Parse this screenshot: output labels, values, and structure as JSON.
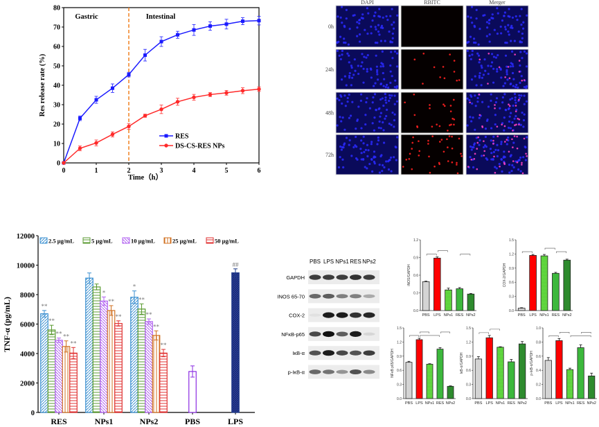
{
  "chart_data": [
    {
      "type": "line",
      "xlabel": "Time（h）",
      "ylabel": "Res release rate (%)",
      "xlim": [
        0,
        6
      ],
      "ylim": [
        0,
        80
      ],
      "xticks": [
        0,
        1,
        2,
        3,
        4,
        5,
        6
      ],
      "yticks": [
        0,
        10,
        20,
        30,
        40,
        50,
        60,
        70,
        80
      ],
      "grid": false,
      "legend_placement": "bottom-right",
      "annotations": {
        "left_region": "Gastric",
        "right_region": "Intestinal",
        "divider_x": 2,
        "divider_color": "#f08020"
      },
      "x": [
        0,
        0.5,
        1,
        1.5,
        2,
        2.5,
        3,
        3.5,
        4,
        4.5,
        5,
        5.5,
        6
      ],
      "series": [
        {
          "name": "RES",
          "color": "#1a1aff",
          "marker": "square",
          "values": [
            0,
            23,
            32.5,
            38.5,
            45.5,
            55.5,
            62.5,
            66,
            68.5,
            70.5,
            71.5,
            73,
            73.3
          ],
          "errors": [
            0,
            1.2,
            1.8,
            2.2,
            1.2,
            3,
            2.5,
            1.8,
            2.8,
            2.2,
            2.5,
            1.8,
            2.2
          ]
        },
        {
          "name": "DS-CS-RES NPs",
          "color": "#ff2a2a",
          "marker": "circle",
          "values": [
            0,
            7.5,
            10.3,
            14.7,
            18.8,
            24.3,
            27.6,
            31.5,
            33.8,
            35.2,
            36.1,
            37.2,
            38
          ],
          "errors": [
            0,
            1.2,
            1.5,
            1.3,
            1.5,
            0.8,
            2.2,
            1.8,
            1.5,
            1,
            1.2,
            1.5,
            1.2
          ]
        }
      ]
    },
    {
      "type": "image-grid",
      "columns": [
        "DAPI",
        "RBITC",
        "Merger"
      ],
      "rows": [
        "0h",
        "24h",
        "48h",
        "72h"
      ],
      "red_signal_level": [
        0,
        0.35,
        0.6,
        1
      ]
    },
    {
      "type": "bar",
      "ylabel": "TNF-α (pg/mL)",
      "ylim": [
        0,
        12000
      ],
      "yticks": [
        0,
        2000,
        4000,
        6000,
        8000,
        10000,
        12000
      ],
      "legend_placement": "top",
      "categories": [
        "RES",
        "NPs1",
        "NPs2",
        "PBS",
        "LPS"
      ],
      "series": [
        {
          "name": "2.5 μg/mL",
          "color": "#3a8fd0",
          "pattern": "diagonal",
          "values": [
            6700,
            9120,
            7820,
            null,
            null
          ],
          "errors": [
            220,
            350,
            430,
            null,
            null
          ],
          "sig": [
            "**",
            "",
            "*",
            "",
            ""
          ]
        },
        {
          "name": "5 μg/mL",
          "color": "#5a9a30",
          "pattern": "horizontal",
          "values": [
            5600,
            8520,
            7020,
            null,
            null
          ],
          "errors": [
            320,
            200,
            350,
            null,
            null
          ],
          "sig": [
            "**",
            "",
            "**",
            "",
            ""
          ]
        },
        {
          "name": "10 μg/mL",
          "color": "#b060f0",
          "pattern": "back-diagonal",
          "values": [
            4900,
            7560,
            6170,
            null,
            null
          ],
          "errors": [
            150,
            280,
            180,
            null,
            null
          ],
          "sig": [
            "**",
            "*",
            "**",
            "",
            ""
          ]
        },
        {
          "name": "25 μg/mL",
          "color": "#d07020",
          "pattern": "vertical",
          "values": [
            4480,
            6920,
            5230,
            null,
            null
          ],
          "errors": [
            380,
            330,
            310,
            null,
            null
          ],
          "sig": [
            "**",
            "**",
            "**",
            "",
            ""
          ]
        },
        {
          "name": "50 μg/mL",
          "color": "#e03030",
          "pattern": "horizontal",
          "values": [
            4030,
            6040,
            4030,
            null,
            null
          ],
          "errors": [
            380,
            180,
            250,
            null,
            null
          ],
          "sig": [
            "**",
            "**",
            "**",
            "",
            ""
          ]
        }
      ],
      "controls": [
        {
          "category": "PBS",
          "value": 2780,
          "error": 380,
          "color": "#8a2be2",
          "fill": "#ffffff",
          "sig": ""
        },
        {
          "category": "LPS",
          "value": 9480,
          "error": 270,
          "color": "#1e3a8a",
          "fill": "#2a3f9a",
          "sig": "##"
        }
      ]
    },
    {
      "type": "western-blot",
      "lanes": [
        "PBS",
        "LPS",
        "NPs1",
        "RES",
        "NPs2"
      ],
      "rows": [
        {
          "label": "GAPDH",
          "intensity": [
            0.8,
            0.8,
            0.8,
            0.85,
            0.8
          ]
        },
        {
          "label": "INOS 65-70",
          "intensity": [
            0.6,
            0.65,
            0.5,
            0.5,
            0.3
          ]
        },
        {
          "label": "COX-2",
          "intensity": [
            0.05,
            0.95,
            0.95,
            0.85,
            0.9
          ]
        },
        {
          "label": "NFκB-p65",
          "intensity": [
            0.75,
            1,
            0.65,
            0.95,
            0.1
          ]
        },
        {
          "label": "IκB-α",
          "intensity": [
            0.7,
            0.95,
            0.75,
            0.7,
            0.8
          ]
        },
        {
          "label": "p-IκB-α",
          "intensity": [
            0.6,
            0.55,
            0.4,
            0.7,
            0.45
          ]
        }
      ]
    },
    {
      "type": "bar",
      "ylabel": "iNOS/GAPDH",
      "ylim": [
        0,
        1.2
      ],
      "yticks": [
        0,
        0.3,
        0.6,
        0.9,
        1.2
      ],
      "categories": [
        "PBS",
        "LPS",
        "NPs1",
        "RES",
        "NPs2"
      ],
      "values": [
        0.49,
        0.89,
        0.35,
        0.37,
        0.28
      ],
      "errors": [
        0.01,
        0.02,
        0.03,
        0.02,
        0.01
      ],
      "brackets": [
        [
          0,
          1
        ],
        [
          1,
          2
        ],
        [
          3,
          4
        ]
      ]
    },
    {
      "type": "bar",
      "ylabel": "COX-2/GAPDH",
      "ylim": [
        0,
        1.5
      ],
      "yticks": [
        0,
        0.3,
        0.6,
        0.9,
        1.2,
        1.5
      ],
      "categories": [
        "PBS",
        "LPS",
        "NPs1",
        "RES",
        "NPs2"
      ],
      "values": [
        0.05,
        1.17,
        1.16,
        0.79,
        1.07
      ],
      "errors": [
        0.01,
        0.02,
        0.03,
        0.02,
        0.02
      ],
      "brackets": [
        [
          0,
          1
        ],
        [
          2,
          3
        ],
        [
          3,
          4
        ]
      ]
    },
    {
      "type": "bar",
      "ylabel": "NFκB p65/GAPDH",
      "ylim": [
        0,
        1.5
      ],
      "yticks": [
        0,
        0.3,
        0.6,
        0.9,
        1.2,
        1.5
      ],
      "categories": [
        "PBS",
        "LPS",
        "NPs1",
        "RES",
        "NPs2"
      ],
      "values": [
        0.77,
        1.25,
        0.73,
        1.05,
        0.26
      ],
      "errors": [
        0.02,
        0.03,
        0.01,
        0.03,
        0.01
      ],
      "brackets": [
        [
          0,
          1
        ],
        [
          1,
          2
        ],
        [
          1,
          3
        ],
        [
          3,
          4
        ]
      ]
    },
    {
      "type": "bar",
      "ylabel": "IκB-α/GAPDH",
      "ylim": [
        0,
        1.5
      ],
      "yticks": [
        0,
        0.3,
        0.6,
        0.9,
        1.2,
        1.5
      ],
      "categories": [
        "PBS",
        "LPS",
        "NPs1",
        "RES",
        "NPs2"
      ],
      "values": [
        0.84,
        1.29,
        1.09,
        0.78,
        1.16
      ],
      "errors": [
        0.05,
        0.05,
        0.01,
        0.05,
        0.05
      ],
      "brackets": [
        [
          0,
          1
        ],
        [
          1,
          2
        ]
      ]
    },
    {
      "type": "bar",
      "ylabel": "p-IκB-α/GAPDH",
      "ylim": [
        0,
        1.0
      ],
      "yticks": [
        0,
        0.2,
        0.4,
        0.6,
        0.8,
        1.0
      ],
      "categories": [
        "PBS",
        "LPS",
        "NPs1",
        "RES",
        "NPs2"
      ],
      "values": [
        0.54,
        0.82,
        0.41,
        0.72,
        0.32
      ],
      "errors": [
        0.04,
        0.03,
        0.02,
        0.04,
        0.04
      ],
      "brackets": [
        [
          0,
          1
        ],
        [
          1,
          2
        ],
        [
          2,
          4
        ],
        [
          3,
          4
        ]
      ]
    }
  ],
  "colors": {
    "PBS": "#d4d4d4",
    "LPS": "#ff0000",
    "NPs1": "#66dd44",
    "RES": "#3cb83c",
    "NPs2": "#2e8b2e"
  }
}
